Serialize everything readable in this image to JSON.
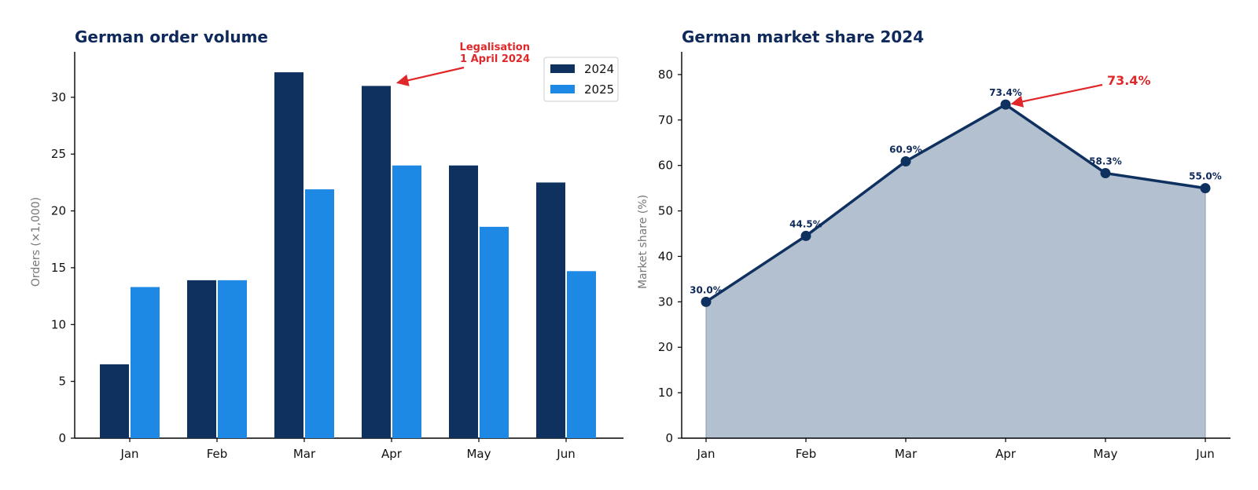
{
  "colors": {
    "series_2024": "#0f3160",
    "series_2025": "#1e88e5",
    "area_fill": "#b3c0cf",
    "line": "#0f3160",
    "annotation": "#e0282b",
    "title": "#0f2a5a"
  },
  "chart_data": [
    {
      "type": "bar",
      "title": "German order volume",
      "xlabel": "",
      "ylabel": "Orders (×1,000)",
      "categories": [
        "Jan",
        "Feb",
        "Mar",
        "Apr",
        "May",
        "Jun"
      ],
      "series": [
        {
          "name": "2024",
          "values": [
            6.5,
            13.9,
            32.2,
            31.0,
            24.0,
            22.5
          ]
        },
        {
          "name": "2025",
          "values": [
            13.3,
            13.9,
            21.9,
            24.0,
            18.6,
            14.7
          ]
        }
      ],
      "ylim": [
        0,
        34
      ],
      "yticks": [
        0,
        5,
        10,
        15,
        20,
        25,
        30
      ],
      "legend": "top-right",
      "grid": false,
      "annotation": {
        "lines": [
          "Legalisation",
          "1 April 2024"
        ],
        "category": "Apr",
        "series": "2024"
      }
    },
    {
      "type": "area",
      "title": "German market share 2024",
      "xlabel": "",
      "ylabel": "Market share (%)",
      "categories": [
        "Jan",
        "Feb",
        "Mar",
        "Apr",
        "May",
        "Jun"
      ],
      "values": [
        30.0,
        44.5,
        60.9,
        73.4,
        58.3,
        55.0
      ],
      "data_labels": [
        "30.0%",
        "44.5%",
        "60.9%",
        "73.4%",
        "58.3%",
        "55.0%"
      ],
      "ylim": [
        0,
        85
      ],
      "yticks": [
        0,
        10,
        20,
        30,
        40,
        50,
        60,
        70,
        80
      ],
      "grid": false,
      "annotation": {
        "text": "73.4%",
        "category": "Apr"
      }
    }
  ]
}
